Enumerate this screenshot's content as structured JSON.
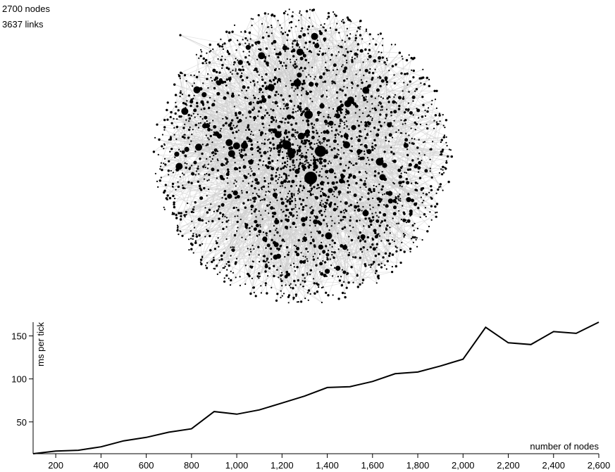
{
  "stats": {
    "nodes_text": "2700 nodes",
    "links_text": "3637 links"
  },
  "graph": {
    "node_count": 2700,
    "link_count": 3637,
    "node_color": "#000000",
    "link_color": "#cccccc"
  },
  "chart_data": {
    "type": "line",
    "xlabel": "number of nodes",
    "ylabel": "ms per tick",
    "xlim": [
      100,
      2600
    ],
    "ylim": [
      13,
      166
    ],
    "x_ticks": [
      200,
      400,
      600,
      800,
      1000,
      1200,
      1400,
      1600,
      1800,
      2000,
      2200,
      2400,
      2600
    ],
    "x_tick_labels": [
      "200",
      "400",
      "600",
      "800",
      "1,000",
      "1,200",
      "1,400",
      "1,600",
      "1,800",
      "2,000",
      "2,200",
      "2,400",
      "2,600"
    ],
    "y_ticks": [
      50,
      100,
      150
    ],
    "y_tick_labels": [
      "50",
      "100",
      "150"
    ],
    "grid": false,
    "line_color": "#000000",
    "x": [
      100,
      200,
      300,
      400,
      500,
      600,
      700,
      800,
      900,
      1000,
      1100,
      1200,
      1300,
      1400,
      1500,
      1600,
      1700,
      1800,
      1900,
      2000,
      2100,
      2200,
      2300,
      2400,
      2500,
      2600
    ],
    "values": [
      13,
      16,
      17,
      21,
      28,
      32,
      38,
      42,
      62,
      59,
      64,
      72,
      80,
      90,
      91,
      97,
      106,
      108,
      115,
      123,
      160,
      142,
      140,
      155,
      153,
      166
    ]
  }
}
